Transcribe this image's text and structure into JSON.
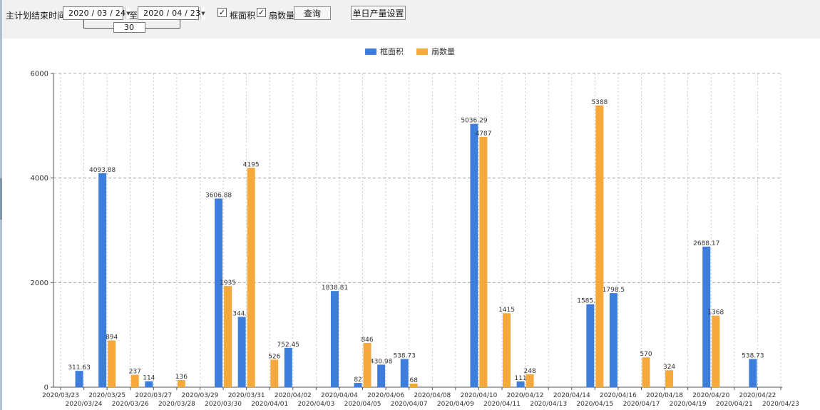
{
  "toolbar": {
    "label": "主计划结束时间:",
    "start_date": "2020 / 03 / 24",
    "to_label": "至:",
    "end_date": "2020 / 04 / 23",
    "days_between": "30",
    "checkbox_frame_area": "框面积",
    "checkbox_fan_count": "扇数量",
    "query_button": "查询",
    "daily_output_button": "单日产量设置",
    "dropdown_arrow_icon": "▼",
    "checkmark_icon": "✓"
  },
  "legend": {
    "frame_area": "框面积",
    "fan_count": "扇数量"
  },
  "colors": {
    "frame_area_blue": "#3d7edc",
    "fan_count_orange": "#f5a93c",
    "toolbar_bg": "#f1f1f1",
    "axis": "#555555",
    "gridline": "#9a9a9a",
    "label_text": "#333333"
  },
  "chart_data": {
    "type": "bar",
    "title": "",
    "xlabel": "",
    "ylabel": "",
    "ylim": [
      0,
      6000
    ],
    "yticks": [
      0,
      2000,
      4000,
      6000
    ],
    "grid": true,
    "legend_position": "top",
    "categories": [
      "2020/03/23",
      "2020/03/24",
      "2020/03/25",
      "2020/03/26",
      "2020/03/27",
      "2020/03/28",
      "2020/03/29",
      "2020/03/30",
      "2020/03/31",
      "2020/04/01",
      "2020/04/02",
      "2020/04/03",
      "2020/04/04",
      "2020/04/05",
      "2020/04/06",
      "2020/04/07",
      "2020/04/08",
      "2020/04/09",
      "2020/04/10",
      "2020/04/11",
      "2020/04/12",
      "2020/04/13",
      "2020/04/14",
      "2020/04/15",
      "2020/04/16",
      "2020/04/17",
      "2020/04/18",
      "2020/04/19",
      "2020/04/20",
      "2020/04/21",
      "2020/04/22",
      "2020/04/23"
    ],
    "series": [
      {
        "name": "框面积",
        "color": "#3d7edc",
        "values": [
          0,
          311.63,
          4093.88,
          0,
          114,
          0,
          0,
          3606.88,
          1344.95,
          0,
          752.45,
          0,
          1838.81,
          82,
          430.98,
          538.73,
          0,
          0,
          5036.29,
          0,
          111,
          0,
          0,
          1585.96,
          1798.5,
          0,
          0,
          0,
          2688.17,
          0,
          538.73,
          0
        ]
      },
      {
        "name": "扇数量",
        "color": "#f5a93c",
        "values": [
          0,
          0,
          894,
          237,
          0,
          136,
          0,
          1935,
          4195,
          526,
          0,
          0,
          0,
          846,
          0,
          68,
          0,
          0,
          4787,
          1415,
          248,
          0,
          0,
          5388,
          0,
          570,
          324,
          0,
          1368,
          0,
          0,
          0
        ]
      }
    ]
  }
}
